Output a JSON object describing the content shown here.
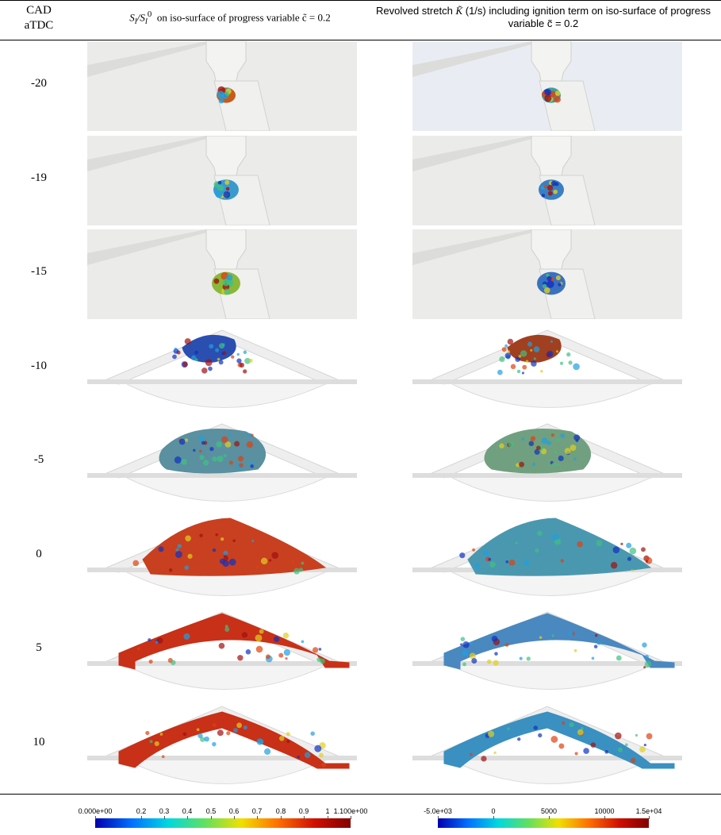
{
  "header": {
    "col0": [
      "CAD",
      "aTDC"
    ],
    "col1": {
      "pieces": [
        "S",
        "l",
        "/S",
        "l",
        "0"
      ],
      "text": "on iso-surface of progress variable c̃ = 0.2"
    },
    "col2": {
      "before": "Revolved stretch",
      "symbol": "K̃",
      "after": "(1/s) including ignition term on iso-surface of progress variable c̃ = 0.2"
    }
  },
  "rows": [
    "-20",
    "-19",
    "-15",
    "-10",
    "-5",
    "0",
    "5",
    "10"
  ],
  "colorbars": [
    {
      "ticks": [
        "0.000e+00",
        "0.2",
        "0.3",
        "0.4",
        "0.5",
        "0.6",
        "0.7",
        "0.8",
        "0.9",
        "1",
        "1.100e+00"
      ]
    },
    {
      "ticks": [
        "-5.0e+03",
        "0",
        "5000",
        "10000",
        "1.5e+04"
      ]
    }
  ]
}
